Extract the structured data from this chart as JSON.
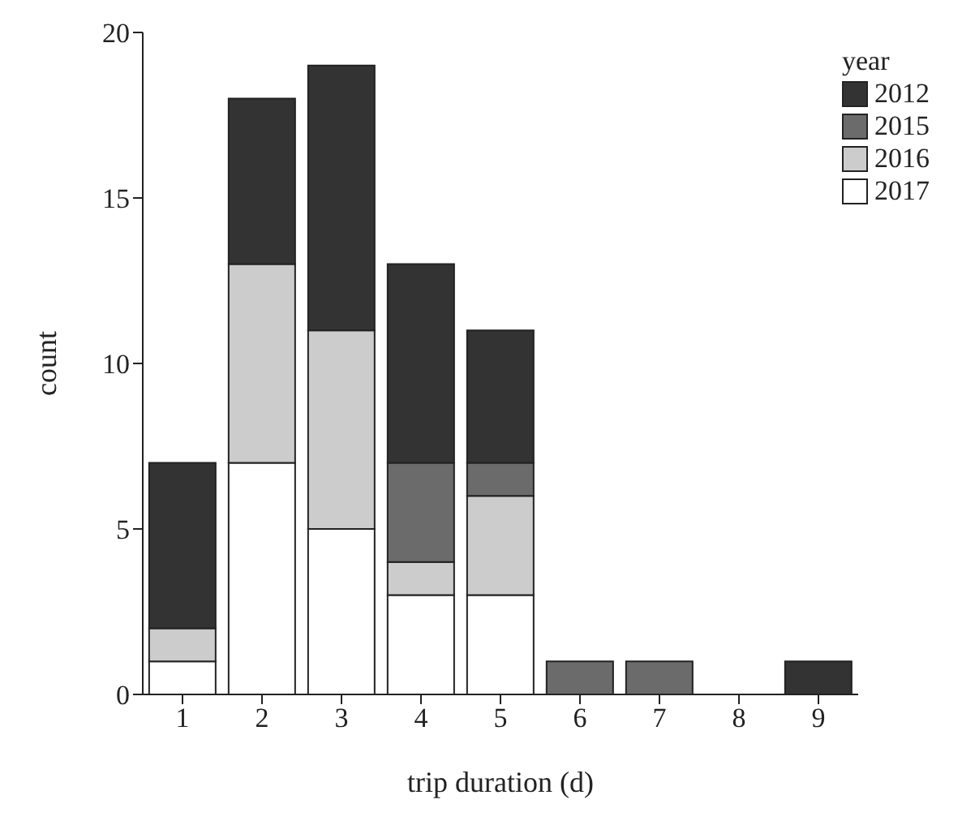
{
  "chart_data": {
    "type": "bar",
    "stacked": true,
    "xlabel": "trip duration (d)",
    "ylabel": "count",
    "legend_title": "year",
    "legend": "top right",
    "categories": [
      "1",
      "2",
      "3",
      "4",
      "5",
      "6",
      "7",
      "8",
      "9"
    ],
    "series": [
      {
        "name": "2017",
        "color": "#ffffff",
        "values": [
          1,
          7,
          5,
          3,
          3,
          0,
          0,
          0,
          0
        ]
      },
      {
        "name": "2016",
        "color": "#cccccc",
        "values": [
          1,
          6,
          6,
          1,
          3,
          0,
          0,
          0,
          0
        ]
      },
      {
        "name": "2015",
        "color": "#6b6b6b",
        "values": [
          0,
          0,
          0,
          3,
          1,
          1,
          1,
          0,
          0
        ]
      },
      {
        "name": "2012",
        "color": "#333333",
        "values": [
          5,
          5,
          8,
          6,
          4,
          0,
          0,
          0,
          1
        ]
      }
    ],
    "ylim": [
      0,
      20
    ],
    "yticks": [
      0,
      5,
      10,
      15,
      20
    ],
    "grid": false
  }
}
